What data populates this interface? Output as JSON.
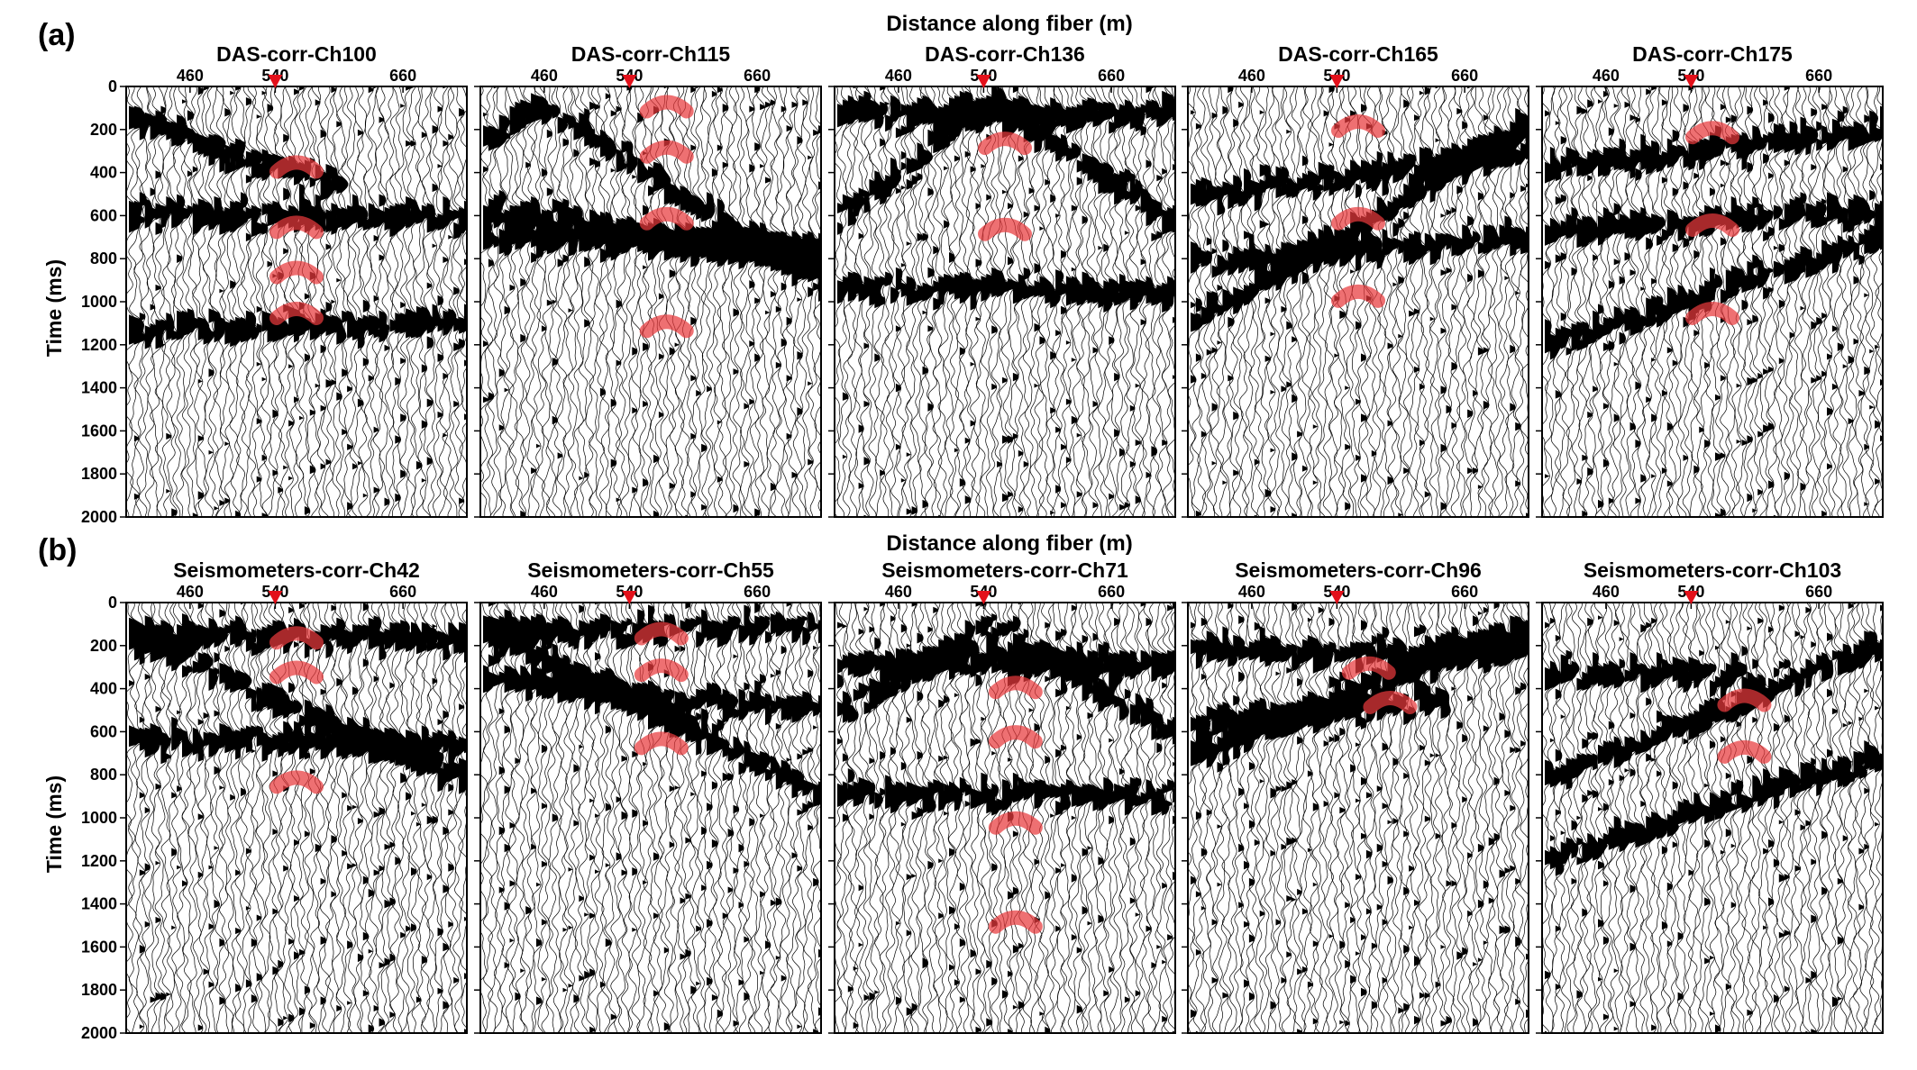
{
  "panel_labels": [
    "(a)",
    "(b)"
  ],
  "shared_xlabel_a": "Distance along fiber (m)",
  "shared_xlabel_b": "Distance along fiber (m)",
  "ylabel": "Time (ms)",
  "colors": {
    "wiggle": "#000000",
    "highlight": "#e8393c",
    "marker": "#e3101a",
    "frame": "#000000"
  },
  "chart_data": [
    {
      "type": "heatmap",
      "title": "DAS-corr-Ch100",
      "x_ticks": [
        460,
        540,
        660
      ],
      "y_ticks": [
        0,
        200,
        400,
        600,
        800,
        1000,
        1200,
        1400,
        1600,
        1800,
        2000
      ],
      "xlim": [
        400,
        720
      ],
      "ylim": [
        0,
        2000
      ],
      "source_x": 540,
      "events": [
        {
          "x0": 380,
          "x1": 600,
          "y0": 100,
          "y1": 480,
          "kind": "line"
        },
        {
          "x0": 400,
          "x1": 720,
          "y0": 580,
          "y1": 620,
          "kind": "flat"
        },
        {
          "x0": 400,
          "x1": 720,
          "y0": 1130,
          "y1": 1100,
          "kind": "flat"
        }
      ],
      "highlights": [
        {
          "x": 560,
          "t": 370
        },
        {
          "x": 560,
          "t": 650
        },
        {
          "x": 560,
          "t": 860
        },
        {
          "x": 560,
          "t": 1050
        }
      ]
    },
    {
      "type": "heatmap",
      "title": "DAS-corr-Ch115",
      "x_ticks": [
        460,
        540,
        660
      ],
      "y_ticks": [
        0,
        200,
        400,
        600,
        800,
        1000,
        1200,
        1400,
        1600,
        1800,
        2000
      ],
      "xlim": [
        400,
        720
      ],
      "ylim": [
        0,
        2000
      ],
      "source_x": 540,
      "events": [
        {
          "x0": 400,
          "x1": 720,
          "y0": 250,
          "y1": 930,
          "kind": "vee",
          "apex_x": 455,
          "apex_t": 90
        },
        {
          "x0": 400,
          "x1": 720,
          "y0": 560,
          "y1": 820,
          "kind": "line"
        },
        {
          "x0": 400,
          "x1": 720,
          "y0": 700,
          "y1": 760,
          "kind": "flat"
        }
      ],
      "highlights": [
        {
          "x": 575,
          "t": 90
        },
        {
          "x": 575,
          "t": 300
        },
        {
          "x": 575,
          "t": 610
        },
        {
          "x": 575,
          "t": 1110
        }
      ]
    },
    {
      "type": "heatmap",
      "title": "DAS-corr-Ch136",
      "x_ticks": [
        460,
        540,
        660
      ],
      "y_ticks": [
        0,
        200,
        400,
        600,
        800,
        1000,
        1200,
        1400,
        1600,
        1800,
        2000
      ],
      "xlim": [
        400,
        720
      ],
      "ylim": [
        0,
        2000
      ],
      "source_x": 540,
      "events": [
        {
          "x0": 400,
          "x1": 720,
          "y0": 600,
          "y1": 640,
          "kind": "vee",
          "apex_x": 545,
          "apex_t": 80
        },
        {
          "x0": 400,
          "x1": 720,
          "y0": 120,
          "y1": 120,
          "kind": "flat"
        },
        {
          "x0": 400,
          "x1": 720,
          "y0": 930,
          "y1": 960,
          "kind": "flat"
        }
      ],
      "highlights": [
        {
          "x": 560,
          "t": 260
        },
        {
          "x": 560,
          "t": 660
        }
      ]
    },
    {
      "type": "heatmap",
      "title": "DAS-corr-Ch165",
      "x_ticks": [
        460,
        540,
        660
      ],
      "y_ticks": [
        0,
        200,
        400,
        600,
        800,
        1000,
        1200,
        1400,
        1600,
        1800,
        2000
      ],
      "xlim": [
        400,
        720
      ],
      "ylim": [
        0,
        2000
      ],
      "source_x": 540,
      "events": [
        {
          "x0": 400,
          "x1": 720,
          "y0": 1110,
          "y1": 160,
          "kind": "line"
        },
        {
          "x0": 400,
          "x1": 720,
          "y0": 520,
          "y1": 300,
          "kind": "line"
        },
        {
          "x0": 400,
          "x1": 720,
          "y0": 820,
          "y1": 700,
          "kind": "line"
        }
      ],
      "highlights": [
        {
          "x": 560,
          "t": 180
        },
        {
          "x": 560,
          "t": 610
        },
        {
          "x": 560,
          "t": 970
        }
      ]
    },
    {
      "type": "heatmap",
      "title": "DAS-corr-Ch175",
      "x_ticks": [
        460,
        540,
        660
      ],
      "y_ticks": [
        0,
        200,
        400,
        600,
        800,
        1000,
        1200,
        1400,
        1600,
        1800,
        2000
      ],
      "xlim": [
        400,
        720
      ],
      "ylim": [
        0,
        2000
      ],
      "source_x": 540,
      "events": [
        {
          "x0": 400,
          "x1": 720,
          "y0": 1200,
          "y1": 700,
          "kind": "line"
        },
        {
          "x0": 400,
          "x1": 720,
          "y0": 380,
          "y1": 200,
          "kind": "line"
        },
        {
          "x0": 400,
          "x1": 720,
          "y0": 680,
          "y1": 560,
          "kind": "line"
        }
      ],
      "highlights": [
        {
          "x": 560,
          "t": 210
        },
        {
          "x": 560,
          "t": 640
        },
        {
          "x": 560,
          "t": 1050
        }
      ]
    },
    {
      "type": "heatmap",
      "title": "Seismometers-corr-Ch42",
      "x_ticks": [
        460,
        540,
        660
      ],
      "y_ticks": [
        0,
        200,
        400,
        600,
        800,
        1000,
        1200,
        1400,
        1600,
        1800,
        2000
      ],
      "xlim": [
        400,
        720
      ],
      "ylim": [
        0,
        2000
      ],
      "source_x": 540,
      "events": [
        {
          "x0": 400,
          "x1": 720,
          "y0": 150,
          "y1": 850,
          "kind": "line"
        },
        {
          "x0": 400,
          "x1": 720,
          "y0": 150,
          "y1": 170,
          "kind": "flat"
        },
        {
          "x0": 400,
          "x1": 720,
          "y0": 640,
          "y1": 660,
          "kind": "flat"
        }
      ],
      "highlights": [
        {
          "x": 560,
          "t": 160
        },
        {
          "x": 560,
          "t": 320
        },
        {
          "x": 560,
          "t": 830
        }
      ]
    },
    {
      "type": "heatmap",
      "title": "Seismometers-corr-Ch55",
      "x_ticks": [
        460,
        540,
        660
      ],
      "y_ticks": [
        0,
        200,
        400,
        600,
        800,
        1000,
        1200,
        1400,
        1600,
        1800,
        2000
      ],
      "xlim": [
        400,
        720
      ],
      "ylim": [
        0,
        2000
      ],
      "source_x": 540,
      "events": [
        {
          "x0": 400,
          "x1": 720,
          "y0": 130,
          "y1": 110,
          "kind": "flat"
        },
        {
          "x0": 400,
          "x1": 720,
          "y0": 120,
          "y1": 900,
          "kind": "line"
        },
        {
          "x0": 400,
          "x1": 720,
          "y0": 350,
          "y1": 500,
          "kind": "line"
        }
      ],
      "highlights": [
        {
          "x": 570,
          "t": 140
        },
        {
          "x": 570,
          "t": 310
        },
        {
          "x": 570,
          "t": 650
        }
      ]
    },
    {
      "type": "heatmap",
      "title": "Seismometers-corr-Ch71",
      "x_ticks": [
        460,
        540,
        660
      ],
      "y_ticks": [
        0,
        200,
        400,
        600,
        800,
        1000,
        1200,
        1400,
        1600,
        1800,
        2000
      ],
      "xlim": [
        400,
        720
      ],
      "ylim": [
        0,
        2000
      ],
      "source_x": 540,
      "events": [
        {
          "x0": 400,
          "x1": 720,
          "y0": 520,
          "y1": 620,
          "kind": "vee",
          "apex_x": 545,
          "apex_t": 100
        },
        {
          "x0": 400,
          "x1": 720,
          "y0": 280,
          "y1": 280,
          "kind": "flat"
        },
        {
          "x0": 400,
          "x1": 720,
          "y0": 880,
          "y1": 900,
          "kind": "flat"
        }
      ],
      "highlights": [
        {
          "x": 570,
          "t": 390
        },
        {
          "x": 570,
          "t": 620
        },
        {
          "x": 570,
          "t": 1020
        },
        {
          "x": 570,
          "t": 1480
        }
      ]
    },
    {
      "type": "heatmap",
      "title": "Seismometers-corr-Ch96",
      "x_ticks": [
        460,
        540,
        660
      ],
      "y_ticks": [
        0,
        200,
        400,
        600,
        800,
        1000,
        1200,
        1400,
        1600,
        1800,
        2000
      ],
      "xlim": [
        400,
        720
      ],
      "ylim": [
        0,
        2000
      ],
      "source_x": 540,
      "events": [
        {
          "x0": 400,
          "x1": 720,
          "y0": 720,
          "y1": 100,
          "kind": "line"
        },
        {
          "x0": 400,
          "x1": 720,
          "y0": 220,
          "y1": 230,
          "kind": "flat"
        },
        {
          "x0": 400,
          "x1": 640,
          "y0": 560,
          "y1": 460,
          "kind": "line"
        }
      ],
      "highlights": [
        {
          "x": 570,
          "t": 300
        },
        {
          "x": 590,
          "t": 460
        }
      ]
    },
    {
      "type": "heatmap",
      "title": "Seismometers-corr-Ch103",
      "x_ticks": [
        460,
        540,
        660
      ],
      "y_ticks": [
        0,
        200,
        400,
        600,
        800,
        1000,
        1200,
        1400,
        1600,
        1800,
        2000
      ],
      "xlim": [
        400,
        720
      ],
      "ylim": [
        0,
        2000
      ],
      "source_x": 540,
      "events": [
        {
          "x0": 400,
          "x1": 720,
          "y0": 820,
          "y1": 200,
          "kind": "line"
        },
        {
          "x0": 400,
          "x1": 600,
          "y0": 330,
          "y1": 330,
          "kind": "flat"
        },
        {
          "x0": 400,
          "x1": 720,
          "y0": 1200,
          "y1": 700,
          "kind": "line"
        }
      ],
      "highlights": [
        {
          "x": 590,
          "t": 450
        },
        {
          "x": 590,
          "t": 690
        }
      ]
    }
  ]
}
